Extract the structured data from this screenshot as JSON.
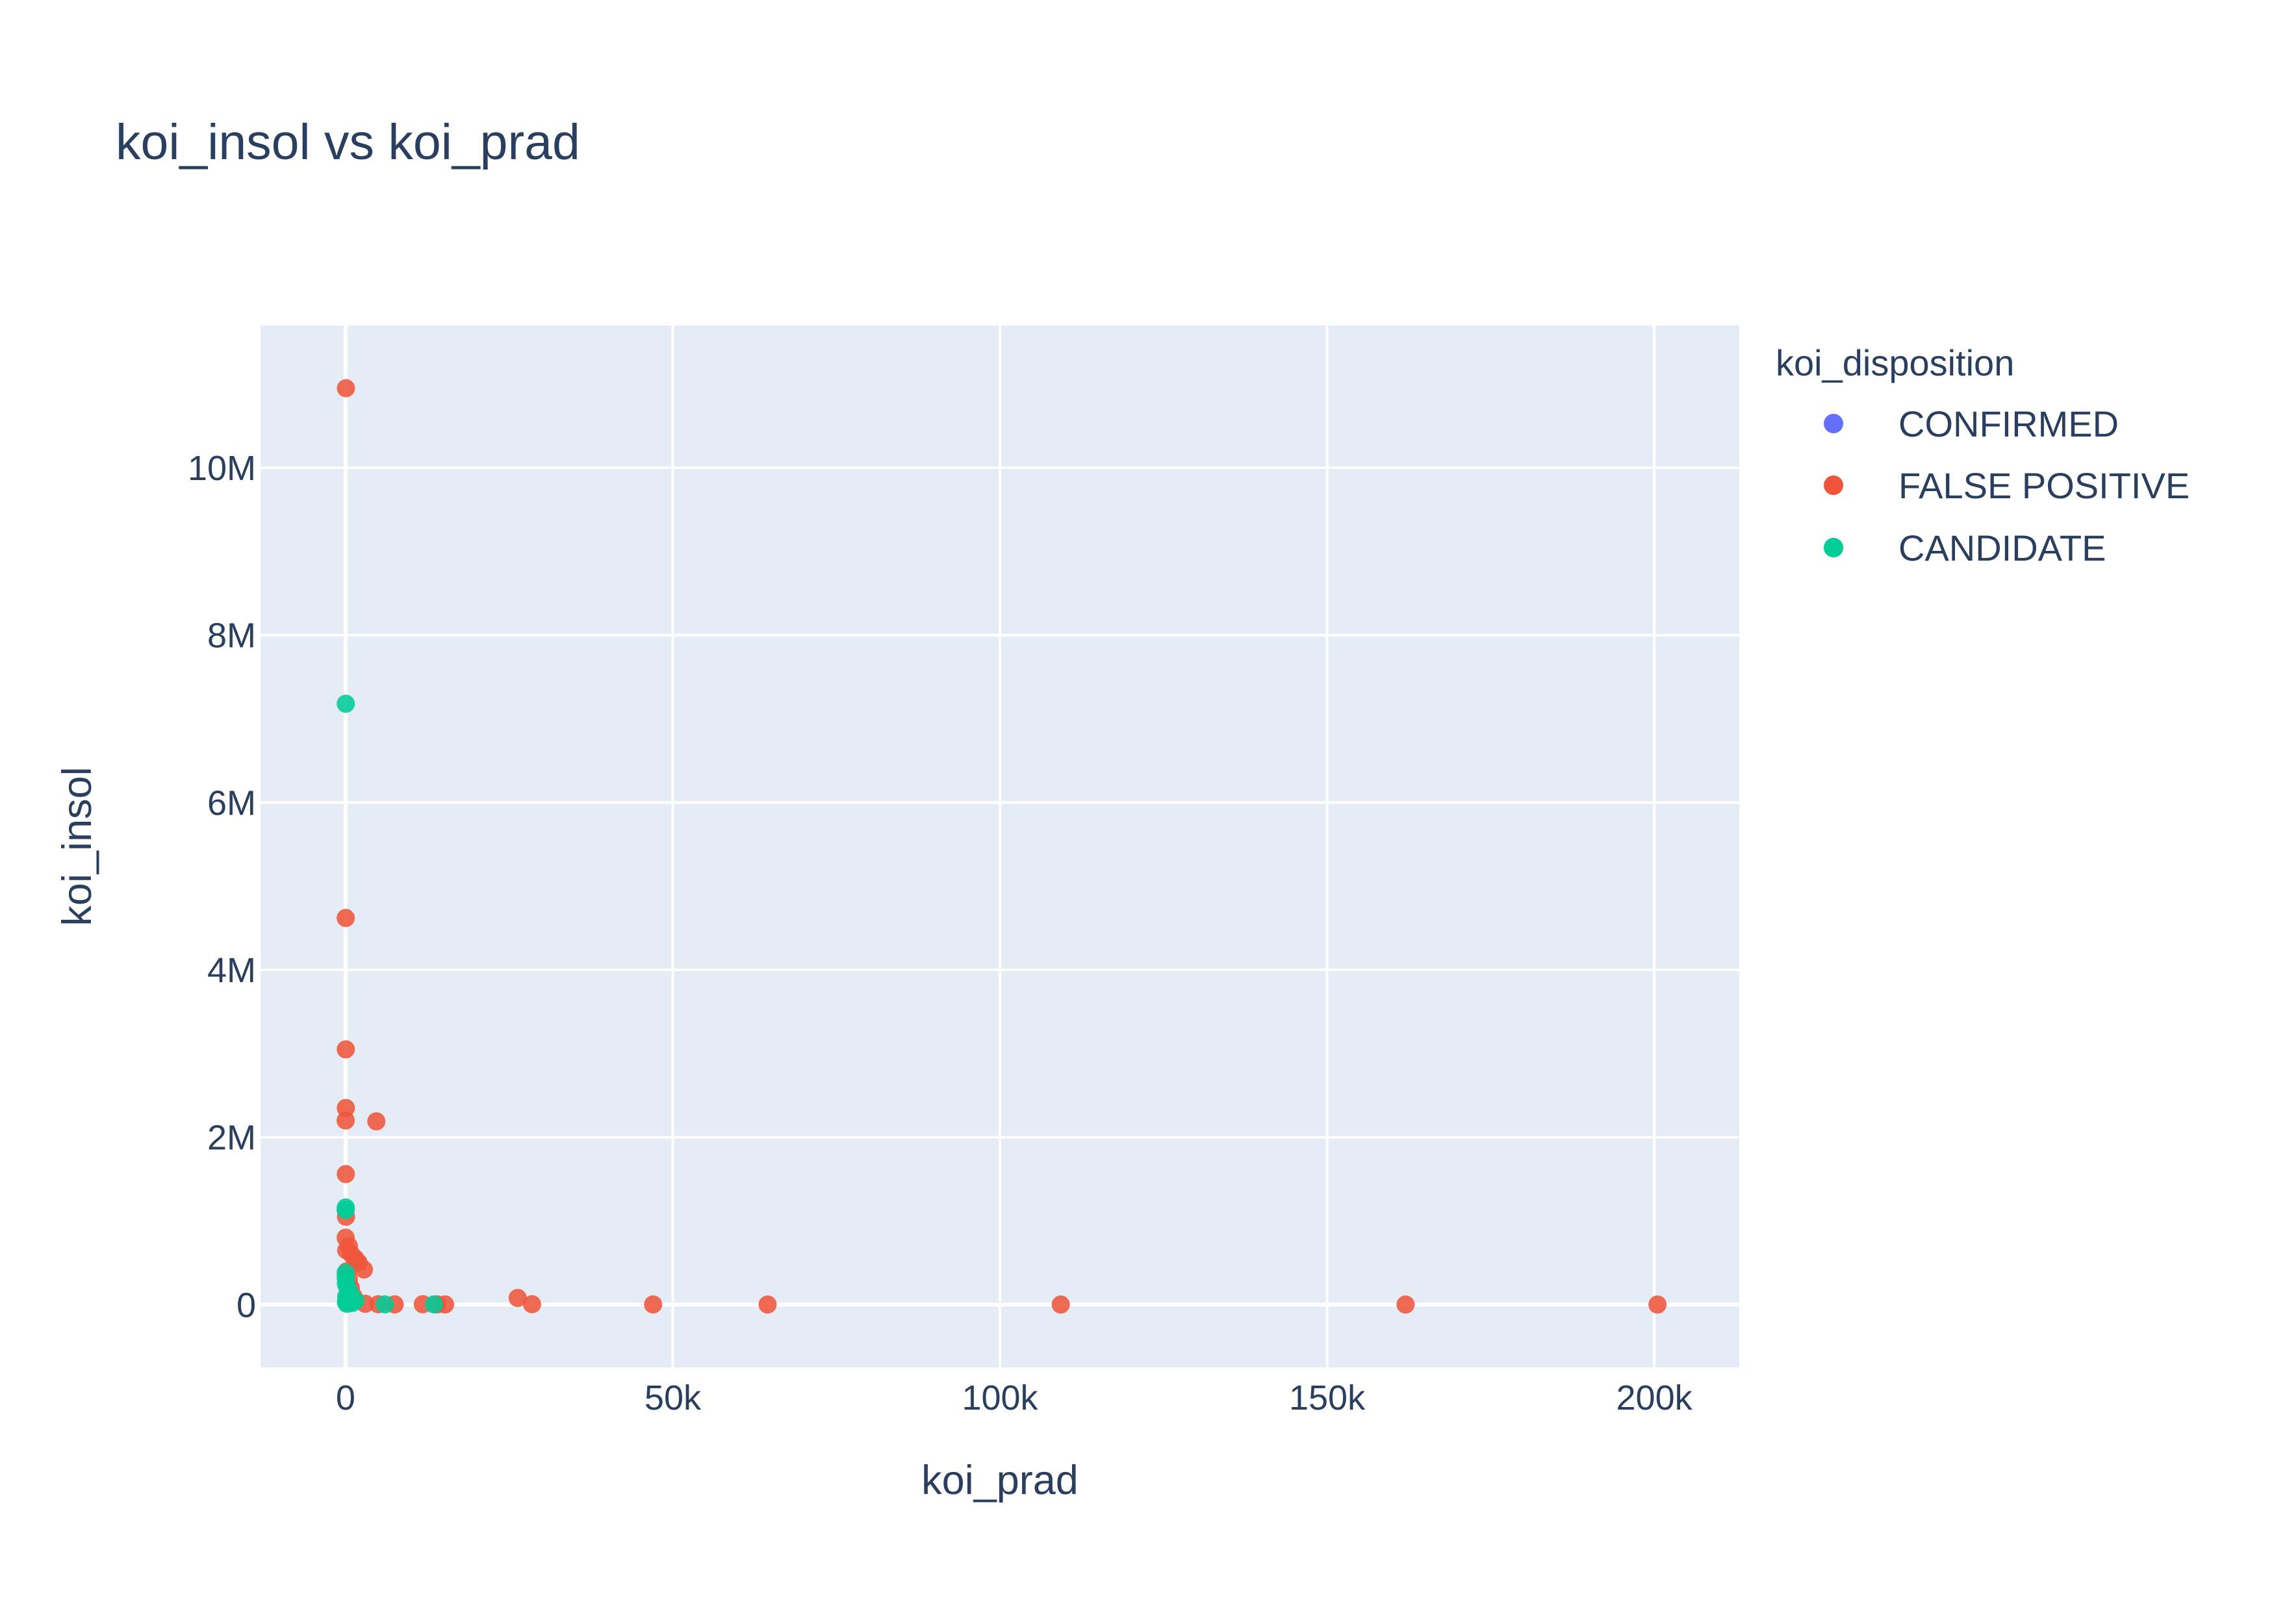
{
  "chart_data": {
    "type": "scatter",
    "title": "koi_insol vs koi_prad",
    "xlabel": "koi_prad",
    "ylabel": "koi_insol",
    "xlim": [
      -13000,
      213000
    ],
    "ylim": [
      -750000,
      11700000
    ],
    "x_ticks": [
      {
        "value": 0,
        "label": "0"
      },
      {
        "value": 50000,
        "label": "50k"
      },
      {
        "value": 100000,
        "label": "100k"
      },
      {
        "value": 150000,
        "label": "150k"
      },
      {
        "value": 200000,
        "label": "200k"
      }
    ],
    "y_ticks": [
      {
        "value": 0,
        "label": "0"
      },
      {
        "value": 2000000,
        "label": "2M"
      },
      {
        "value": 4000000,
        "label": "4M"
      },
      {
        "value": 6000000,
        "label": "6M"
      },
      {
        "value": 8000000,
        "label": "8M"
      },
      {
        "value": 10000000,
        "label": "10M"
      }
    ],
    "grid": true,
    "background": "#e5ecf6",
    "legend": {
      "title": "koi_disposition",
      "placement": "right"
    },
    "series": [
      {
        "name": "CONFIRMED",
        "color": "#636efa",
        "points": []
      },
      {
        "name": "FALSE POSITIVE",
        "color": "#ef553b",
        "points": [
          [
            50,
            10950000
          ],
          [
            20,
            4620000
          ],
          [
            30,
            3050000
          ],
          [
            40,
            2350000
          ],
          [
            10,
            2200000
          ],
          [
            4700,
            2190000
          ],
          [
            30,
            1560000
          ],
          [
            60,
            1050000
          ],
          [
            10,
            800000
          ],
          [
            500,
            700000
          ],
          [
            100,
            650000
          ],
          [
            900,
            600000
          ],
          [
            1500,
            550000
          ],
          [
            2000,
            500000
          ],
          [
            2800,
            420000
          ],
          [
            200,
            400000
          ],
          [
            500,
            300000
          ],
          [
            800,
            200000
          ],
          [
            1200,
            100000
          ],
          [
            100,
            50000
          ],
          [
            3000,
            10000
          ],
          [
            5000,
            5000
          ],
          [
            7500,
            3000
          ],
          [
            11800,
            5000
          ],
          [
            14000,
            3000
          ],
          [
            15200,
            2000
          ],
          [
            26300,
            80000
          ],
          [
            28500,
            5000
          ],
          [
            47000,
            2000
          ],
          [
            64500,
            1000
          ],
          [
            109300,
            1000
          ],
          [
            162000,
            1000
          ],
          [
            200500,
            1000
          ]
        ]
      },
      {
        "name": "CANDIDATE",
        "color": "#00cc96",
        "points": [
          [
            30,
            7180000
          ],
          [
            20,
            1160000
          ],
          [
            10,
            1130000
          ],
          [
            5,
            380000
          ],
          [
            15,
            320000
          ],
          [
            40,
            250000
          ],
          [
            300,
            200000
          ],
          [
            600,
            150000
          ],
          [
            100,
            100000
          ],
          [
            800,
            80000
          ],
          [
            1500,
            50000
          ],
          [
            50,
            30000
          ],
          [
            1000,
            20000
          ],
          [
            200,
            10000
          ],
          [
            6000,
            3000
          ],
          [
            13500,
            3000
          ]
        ]
      }
    ]
  }
}
